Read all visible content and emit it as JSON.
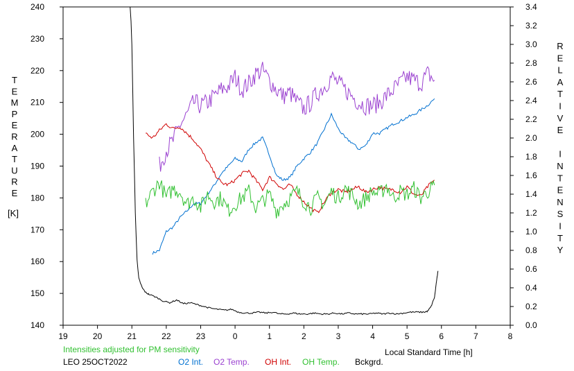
{
  "chart_data": {
    "type": "line",
    "left_axis": {
      "label": "TEMPERATURE [K]",
      "ylim": [
        140,
        240
      ],
      "ticks": [
        "140",
        "150",
        "160",
        "170",
        "180",
        "190",
        "200",
        "210",
        "220",
        "230",
        "240"
      ]
    },
    "right_axis": {
      "label": "RELATIVE INTENSITY",
      "ylim": [
        0,
        3.4
      ],
      "ticks": [
        "0.0",
        "0.2",
        "0.4",
        "0.6",
        "0.8",
        "1.0",
        "1.2",
        "1.4",
        "1.6",
        "1.8",
        "2.0",
        "2.2",
        "2.4",
        "2.6",
        "2.8",
        "3.0",
        "3.2",
        "3.4"
      ]
    },
    "x_axis": {
      "label": "Local Standard Time [h]",
      "ticks": [
        "19",
        "20",
        "21",
        "22",
        "23",
        "0",
        "1",
        "2",
        "3",
        "4",
        "5",
        "6",
        "7",
        "8"
      ]
    },
    "note": "Intensities adjusted for PM sensitivity",
    "station_date": "LEO 25OCT2022",
    "series": [
      {
        "name": "O2 Int.",
        "axis": "right",
        "color": "#0070d0",
        "x": [
          21.6,
          21.8,
          22.0,
          22.2,
          22.4,
          22.6,
          22.8,
          23.0,
          23.2,
          23.4,
          23.6,
          23.8,
          24.0,
          24.2,
          24.4,
          24.6,
          24.8,
          25.0,
          25.2,
          25.4,
          25.6,
          25.8,
          26.0,
          26.2,
          26.4,
          26.6,
          26.8,
          27.0,
          27.2,
          27.4,
          27.6,
          27.8,
          28.0,
          28.2,
          28.4,
          28.6,
          28.8,
          29.0,
          29.2,
          29.4,
          29.6,
          29.8
        ],
        "y": [
          0.77,
          0.8,
          1.0,
          1.05,
          1.15,
          1.22,
          1.3,
          1.3,
          1.4,
          1.5,
          1.62,
          1.7,
          1.78,
          1.75,
          1.88,
          1.95,
          2.0,
          1.82,
          1.6,
          1.55,
          1.58,
          1.7,
          1.78,
          1.85,
          1.95,
          2.1,
          2.25,
          2.1,
          2.0,
          1.95,
          1.88,
          1.92,
          2.05,
          2.05,
          2.1,
          2.15,
          2.18,
          2.22,
          2.25,
          2.3,
          2.35,
          2.42
        ]
      },
      {
        "name": "O2 Temp.",
        "axis": "left",
        "color": "#9a40d0",
        "x": [
          21.8,
          22.0,
          22.2,
          22.4,
          22.6,
          22.8,
          23.0,
          23.2,
          23.4,
          23.6,
          23.8,
          24.0,
          24.2,
          24.4,
          24.6,
          24.8,
          25.0,
          25.2,
          25.4,
          25.6,
          25.8,
          26.0,
          26.2,
          26.4,
          26.6,
          26.8,
          27.0,
          27.2,
          27.4,
          27.6,
          27.8,
          28.0,
          28.2,
          28.4,
          28.6,
          28.8,
          29.0,
          29.2,
          29.4,
          29.6,
          29.8
        ],
        "y": [
          190,
          195,
          198,
          203,
          206,
          210,
          209,
          210,
          212,
          214,
          215,
          218,
          214,
          216,
          219,
          220,
          217,
          214,
          212,
          213,
          210,
          208,
          210,
          213,
          215,
          218,
          216,
          214,
          212,
          210,
          209,
          209,
          210,
          212,
          214,
          216,
          218,
          217,
          216,
          219,
          217
        ]
      },
      {
        "name": "OH Int.",
        "axis": "right",
        "color": "#d00000",
        "x": [
          21.4,
          21.6,
          21.8,
          22.0,
          22.2,
          22.4,
          22.6,
          22.8,
          23.0,
          23.2,
          23.4,
          23.6,
          23.8,
          24.0,
          24.2,
          24.4,
          24.6,
          24.8,
          25.0,
          25.2,
          25.4,
          25.6,
          25.8,
          26.0,
          26.2,
          26.4,
          26.6,
          26.8,
          27.0,
          27.2,
          27.4,
          27.6,
          27.8,
          28.0,
          28.2,
          28.4,
          28.6,
          28.8,
          29.0,
          29.2,
          29.4,
          29.6,
          29.8
        ],
        "y": [
          2.05,
          2.0,
          2.08,
          2.15,
          2.1,
          2.12,
          2.05,
          1.98,
          1.88,
          1.75,
          1.62,
          1.52,
          1.5,
          1.55,
          1.62,
          1.65,
          1.55,
          1.45,
          1.58,
          1.52,
          1.45,
          1.5,
          1.4,
          1.32,
          1.25,
          1.2,
          1.32,
          1.42,
          1.45,
          1.42,
          1.45,
          1.48,
          1.42,
          1.45,
          1.48,
          1.45,
          1.45,
          1.42,
          1.48,
          1.4,
          1.38,
          1.48,
          1.55
        ]
      },
      {
        "name": "OH Temp.",
        "axis": "left",
        "color": "#30c030",
        "x": [
          21.4,
          21.6,
          21.8,
          22.0,
          22.2,
          22.4,
          22.6,
          22.8,
          23.0,
          23.2,
          23.4,
          23.6,
          23.8,
          24.0,
          24.2,
          24.4,
          24.6,
          24.8,
          25.0,
          25.2,
          25.4,
          25.6,
          25.8,
          26.0,
          26.2,
          26.4,
          26.6,
          26.8,
          27.0,
          27.2,
          27.4,
          27.6,
          27.8,
          28.0,
          28.2,
          28.4,
          28.6,
          28.8,
          29.0,
          29.2,
          29.4,
          29.6,
          29.8
        ],
        "y": [
          178,
          182,
          185,
          180,
          183,
          182,
          178,
          180,
          177,
          181,
          179,
          180,
          176,
          178,
          180,
          182,
          177,
          179,
          181,
          176,
          178,
          180,
          182,
          179,
          177,
          180,
          178,
          182,
          180,
          183,
          181,
          178,
          180,
          182,
          181,
          184,
          180,
          182,
          181,
          183,
          180,
          182,
          184
        ]
      },
      {
        "name": "Bckgrd.",
        "axis": "right",
        "color": "#000000",
        "x": [
          20.95,
          21.0,
          21.05,
          21.1,
          21.15,
          21.2,
          21.3,
          21.4,
          21.5,
          21.7,
          21.9,
          22.1,
          22.3,
          22.5,
          22.7,
          22.9,
          23.1,
          23.3,
          23.5,
          23.7,
          23.9,
          24.1,
          24.3,
          24.5,
          24.7,
          24.9,
          25.1,
          25.3,
          25.5,
          25.7,
          25.9,
          26.1,
          26.3,
          26.5,
          26.7,
          26.9,
          27.1,
          27.3,
          27.5,
          27.7,
          27.9,
          28.1,
          28.3,
          28.5,
          28.7,
          28.9,
          29.1,
          29.3,
          29.5,
          29.6,
          29.7,
          29.8,
          29.85,
          29.9
        ],
        "y": [
          3.5,
          3.0,
          2.0,
          1.2,
          0.7,
          0.5,
          0.4,
          0.35,
          0.33,
          0.3,
          0.26,
          0.24,
          0.27,
          0.23,
          0.24,
          0.22,
          0.2,
          0.18,
          0.17,
          0.16,
          0.17,
          0.14,
          0.13,
          0.13,
          0.14,
          0.13,
          0.14,
          0.12,
          0.12,
          0.13,
          0.12,
          0.12,
          0.13,
          0.12,
          0.12,
          0.13,
          0.12,
          0.13,
          0.12,
          0.12,
          0.12,
          0.13,
          0.12,
          0.13,
          0.12,
          0.13,
          0.14,
          0.14,
          0.14,
          0.15,
          0.2,
          0.3,
          0.45,
          0.58
        ]
      }
    ]
  }
}
